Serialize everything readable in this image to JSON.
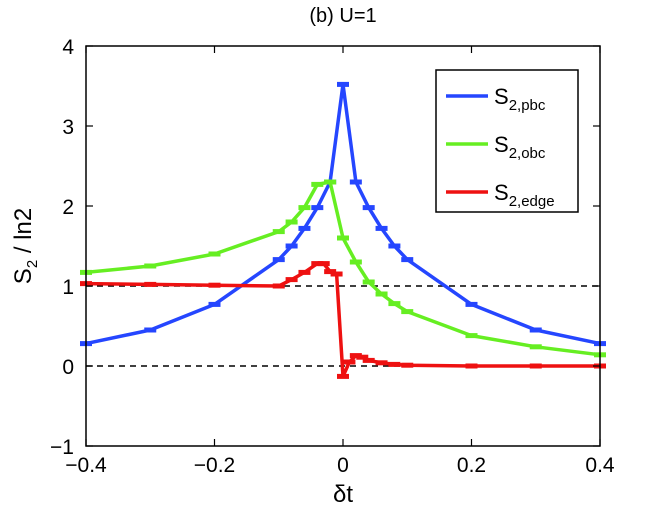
{
  "chart_data": {
    "type": "line",
    "title": "(b) U=1",
    "xlabel": "δt",
    "ylabel_main": "S",
    "ylabel_sub": "2",
    "ylabel_rest": " / ln2",
    "xlim": [
      -0.4,
      0.4
    ],
    "ylim": [
      -1,
      4
    ],
    "xticks": [
      -0.4,
      -0.2,
      0,
      0.2,
      0.4
    ],
    "xtick_labels": [
      "−0.4",
      "−0.2",
      "0",
      "0.2",
      "0.4"
    ],
    "yticks": [
      -1,
      0,
      1,
      2,
      3,
      4
    ],
    "ytick_labels": [
      "−1",
      "0",
      "1",
      "2",
      "3",
      "4"
    ],
    "reference_lines": [
      1,
      0
    ],
    "legend_position": "top-right",
    "series": [
      {
        "name": "S_{2,pbc}",
        "label_main": "S",
        "label_sub": "2,pbc",
        "color": "#2546ff",
        "x": [
          -0.4,
          -0.3,
          -0.2,
          -0.1,
          -0.08,
          -0.06,
          -0.04,
          -0.02,
          0,
          0.02,
          0.04,
          0.06,
          0.08,
          0.1,
          0.2,
          0.3,
          0.4
        ],
        "y": [
          0.28,
          0.45,
          0.77,
          1.33,
          1.5,
          1.72,
          1.98,
          2.3,
          3.52,
          2.3,
          1.98,
          1.72,
          1.5,
          1.33,
          0.77,
          0.45,
          0.28
        ]
      },
      {
        "name": "S_{2,obc}",
        "label_main": "S",
        "label_sub": "2,obc",
        "color": "#66ee22",
        "x": [
          -0.4,
          -0.3,
          -0.2,
          -0.1,
          -0.08,
          -0.06,
          -0.04,
          -0.02,
          0,
          0.02,
          0.04,
          0.06,
          0.08,
          0.1,
          0.2,
          0.3,
          0.4
        ],
        "y": [
          1.17,
          1.25,
          1.4,
          1.68,
          1.8,
          1.98,
          2.27,
          2.3,
          1.6,
          1.3,
          1.05,
          0.9,
          0.78,
          0.68,
          0.38,
          0.24,
          0.14
        ]
      },
      {
        "name": "S_{2,edge}",
        "label_main": "S",
        "label_sub": "2,edge",
        "color": "#ee1111",
        "x": [
          -0.4,
          -0.3,
          -0.2,
          -0.1,
          -0.08,
          -0.06,
          -0.04,
          -0.03,
          -0.02,
          -0.01,
          0,
          0.01,
          0.02,
          0.03,
          0.04,
          0.06,
          0.08,
          0.1,
          0.2,
          0.3,
          0.4
        ],
        "y": [
          1.03,
          1.02,
          1.01,
          1.0,
          1.08,
          1.17,
          1.28,
          1.28,
          1.18,
          1.15,
          -0.13,
          0.05,
          0.13,
          0.11,
          0.07,
          0.04,
          0.02,
          0.01,
          0.0,
          0.0,
          0.0
        ]
      }
    ]
  }
}
